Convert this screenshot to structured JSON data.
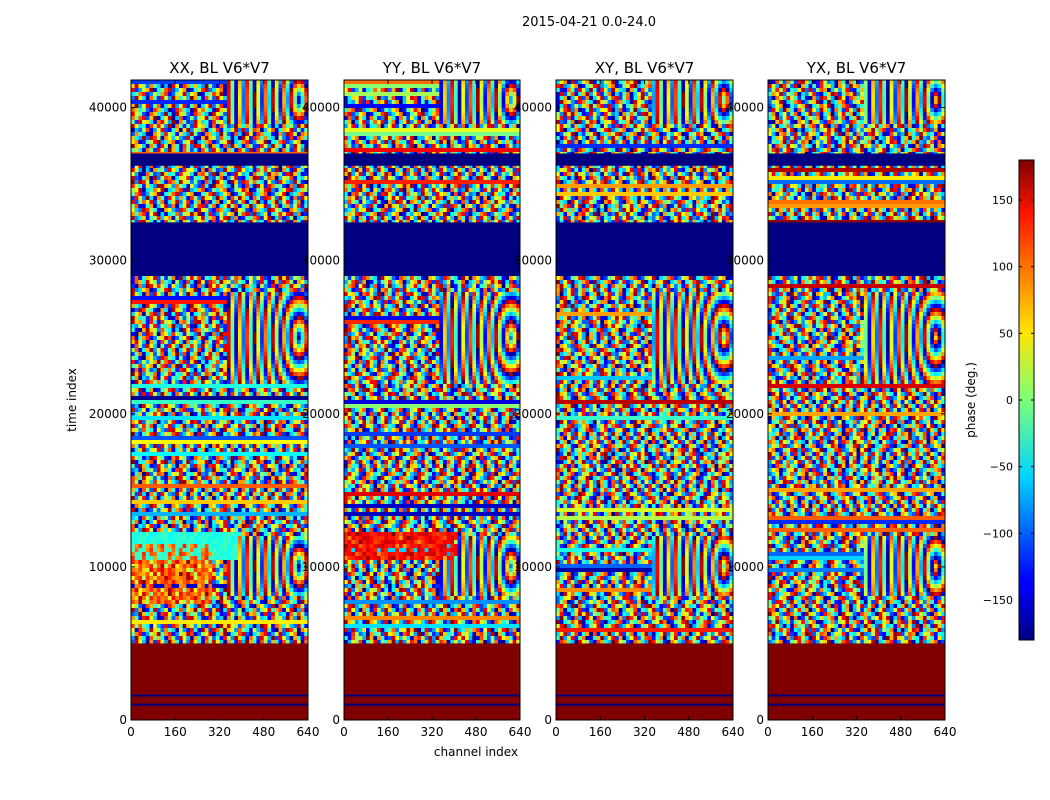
{
  "figure": {
    "suptitle": "2015-04-21 0.0-24.0"
  },
  "chart_data": {
    "type": "heatmap",
    "xlabel": "channel index",
    "ylabel": "time index",
    "xlim": [
      0,
      640
    ],
    "ylim": [
      0,
      41800
    ],
    "xticks": [
      0,
      160,
      320,
      480,
      640
    ],
    "yticks": [
      0,
      10000,
      20000,
      30000,
      40000
    ],
    "panels": [
      {
        "title": "XX, BL V6*V7",
        "cyan_patch": true,
        "red_patch": false
      },
      {
        "title": "YY, BL V6*V7",
        "cyan_patch": false,
        "red_patch": true
      },
      {
        "title": "XY, BL V6*V7",
        "cyan_patch": false,
        "red_patch": false
      },
      {
        "title": "YX, BL V6*V7",
        "cyan_patch": false,
        "red_patch": false
      }
    ],
    "colorbar": {
      "label": "phase (deg.)",
      "range": [
        -180,
        180
      ],
      "ticks": [
        -150,
        -100,
        -50,
        0,
        50,
        100,
        150
      ],
      "colormap": "jet"
    },
    "bands": [
      {
        "y0": 0,
        "y1": 5000,
        "phase": 180
      },
      {
        "y0": 29000,
        "y1": 32500,
        "phase": -180
      },
      {
        "y0": 36200,
        "y1": 37000,
        "phase": -180
      }
    ]
  }
}
